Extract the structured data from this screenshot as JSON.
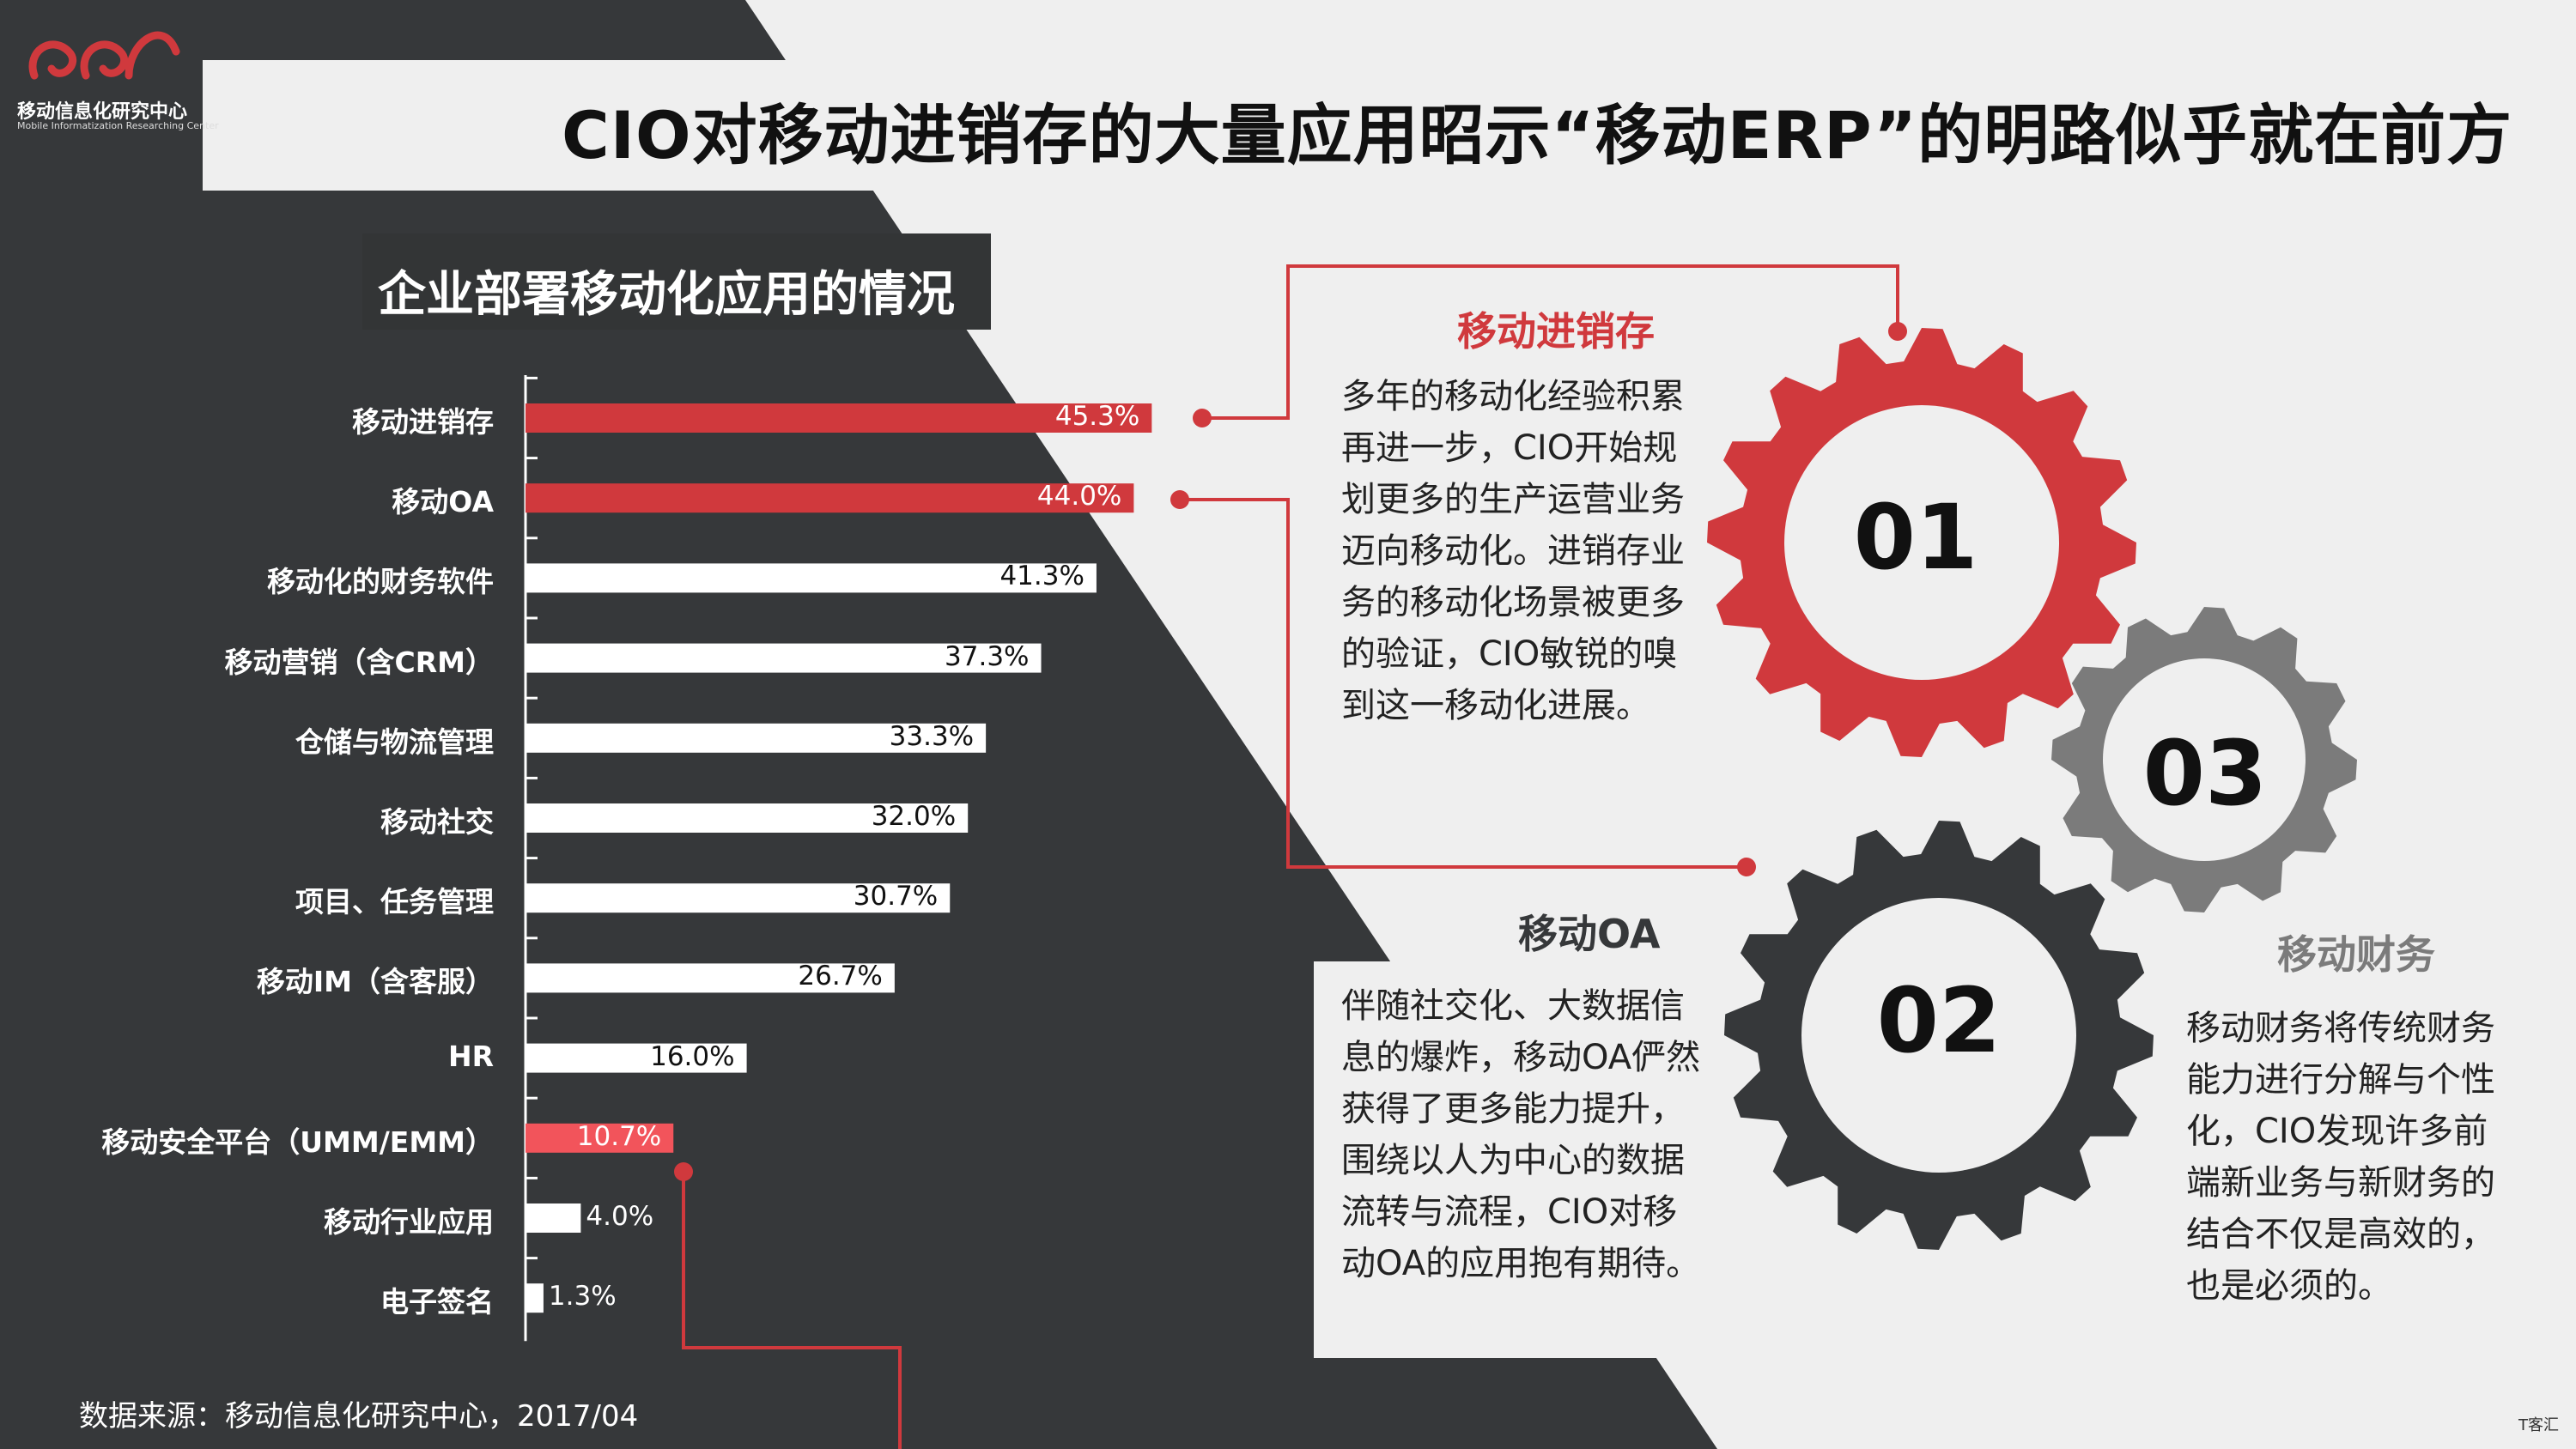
{
  "header": {
    "logo_name": "移动信息化研究中心",
    "logo_sub": "Mobile Informatization Researching Center",
    "title": "CIO对移动进销存的大量应用昭示“移动ERP”的明路似乎就在前方"
  },
  "colors": {
    "dark": "#36383a",
    "red": "#d0393d",
    "light_red": "#f2545b",
    "gray": "#7b7b7b",
    "bg": "#efefef"
  },
  "chart_data": {
    "type": "bar",
    "orientation": "horizontal",
    "title": "企业部署移动化应用的情况",
    "categories": [
      "移动进销存",
      "移动OA",
      "移动化的财务软件",
      "移动营销（含CRM）",
      "仓储与物流管理",
      "移动社交",
      "项目、任务管理",
      "移动IM（含客服）",
      "HR",
      "移动安全平台（UMM/EMM）",
      "移动行业应用",
      "电子签名"
    ],
    "values": [
      45.3,
      44.0,
      41.3,
      37.3,
      33.3,
      32.0,
      30.7,
      26.7,
      16.0,
      10.7,
      4.0,
      1.3
    ],
    "value_labels": [
      "45.3%",
      "44.0%",
      "41.3%",
      "37.3%",
      "33.3%",
      "32.0%",
      "30.7%",
      "26.7%",
      "16.0%",
      "10.7%",
      "4.0%",
      "1.3%"
    ],
    "highlight": [
      "red",
      "red",
      "white",
      "white",
      "white",
      "white",
      "white",
      "white",
      "white",
      "light-red",
      "white",
      "white"
    ],
    "xlim": [
      0,
      50
    ]
  },
  "source": "数据来源：移动信息化研究中心，2017/04",
  "sections": {
    "s01": {
      "number": "01",
      "title": "移动进销存",
      "text": "多年的移动化经验积累再进一步，CIO开始规划更多的生产运营业务迈向移动化。进销存业务的移动化场景被更多的验证，CIO敏锐的嗅到这一移动化进展。"
    },
    "s02": {
      "number": "02",
      "title": "移动OA",
      "text": "伴随社交化、大数据信息的爆炸，移动OA俨然获得了更多能力提升，围绕以人为中心的数据流转与流程，CIO对移动OA的应用抱有期待。"
    },
    "s03": {
      "number": "03",
      "title": "移动财务",
      "text": "移动财务将传统财务能力进行分解与个性化，CIO发现许多前端新业务与新财务的结合不仅是高效的，也是必须的。"
    }
  },
  "watermark": "T客汇"
}
